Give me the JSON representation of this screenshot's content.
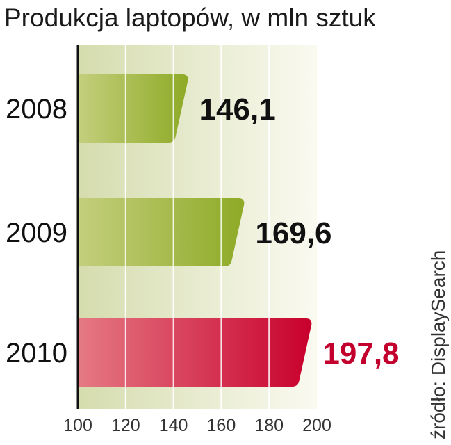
{
  "source": "źródło: DisplaySearch",
  "colors": {
    "background_left": "#d5dcad",
    "background_right": "#fafaf1",
    "bar_default_left": "#c4cf7d",
    "bar_default_right": "#8eaa26",
    "bar_highlight_left": "#e57a84",
    "bar_highlight_right": "#c8002c",
    "value_default": "#111111",
    "value_highlight": "#c3002d",
    "gridline": "#ffffff",
    "axis": "#111111"
  },
  "chart_data": {
    "type": "bar",
    "orientation": "horizontal",
    "title": "Produkcja laptopów, w mln sztuk",
    "categories": [
      "2008",
      "2009",
      "2010"
    ],
    "values": [
      146.1,
      169.6,
      197.8
    ],
    "value_labels": [
      "146,1",
      "169,6",
      "197,8"
    ],
    "highlight_index": 2,
    "xlim": [
      100,
      200
    ],
    "xticks": [
      100,
      120,
      140,
      160,
      180,
      200
    ],
    "xlabel": "",
    "ylabel": "",
    "grid": true,
    "legend": "none"
  }
}
